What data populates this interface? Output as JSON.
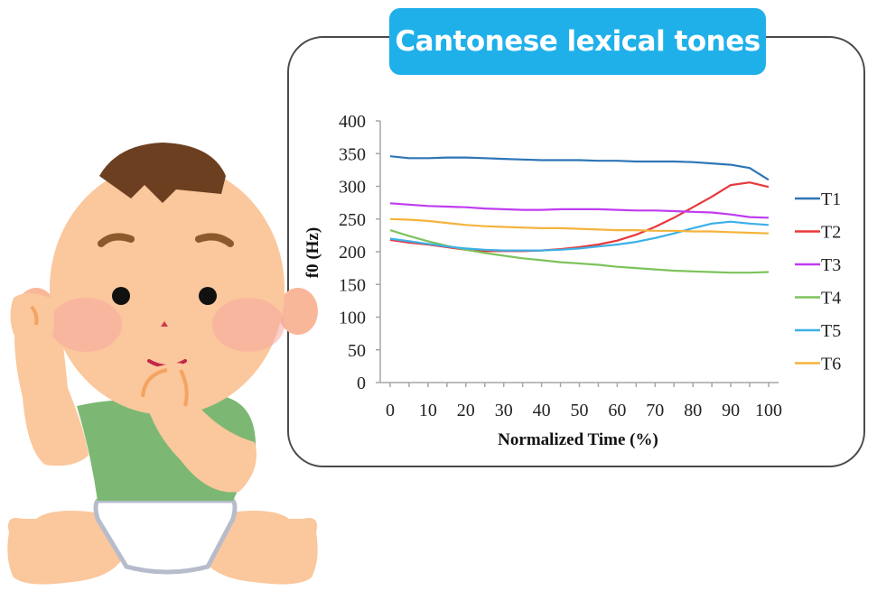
{
  "title": "Cantonese lexical tones",
  "chart_data": {
    "type": "line",
    "title": "Cantonese lexical tones",
    "xlabel": "Normalized Time (%)",
    "ylabel": "f0 (Hz)",
    "x": [
      0,
      5,
      10,
      15,
      20,
      25,
      30,
      35,
      40,
      45,
      50,
      55,
      60,
      65,
      70,
      75,
      80,
      85,
      90,
      95,
      100
    ],
    "xticks": [
      0,
      10,
      20,
      30,
      40,
      50,
      60,
      70,
      80,
      90,
      100
    ],
    "yticks": [
      0,
      50,
      100,
      150,
      200,
      250,
      300,
      350,
      400
    ],
    "xlim": [
      0,
      100
    ],
    "ylim": [
      0,
      400
    ],
    "grid": false,
    "legend_position": "right",
    "series": [
      {
        "name": "T1",
        "color": "#2e75b6",
        "values": [
          346,
          343,
          343,
          344,
          344,
          343,
          342,
          341,
          340,
          340,
          340,
          339,
          339,
          338,
          338,
          338,
          337,
          335,
          333,
          328,
          310
        ]
      },
      {
        "name": "T2",
        "color": "#e8383b",
        "values": [
          218,
          214,
          211,
          207,
          203,
          201,
          201,
          201,
          202,
          204,
          207,
          211,
          217,
          226,
          238,
          252,
          268,
          284,
          302,
          306,
          299
        ]
      },
      {
        "name": "T3",
        "color": "#c03cf0",
        "values": [
          274,
          272,
          270,
          269,
          268,
          266,
          265,
          264,
          264,
          265,
          265,
          265,
          264,
          263,
          263,
          262,
          261,
          260,
          257,
          253,
          252
        ]
      },
      {
        "name": "T4",
        "color": "#7dc35b",
        "values": [
          233,
          224,
          216,
          209,
          203,
          198,
          194,
          190,
          187,
          184,
          182,
          180,
          177,
          175,
          173,
          171,
          170,
          169,
          168,
          168,
          169
        ]
      },
      {
        "name": "T5",
        "color": "#3cb0e8",
        "values": [
          220,
          216,
          212,
          208,
          205,
          203,
          202,
          202,
          202,
          203,
          205,
          208,
          211,
          215,
          221,
          228,
          236,
          243,
          246,
          243,
          241
        ]
      },
      {
        "name": "T6",
        "color": "#f5b33c",
        "values": [
          250,
          249,
          247,
          244,
          241,
          239,
          238,
          237,
          236,
          236,
          235,
          234,
          233,
          233,
          232,
          232,
          231,
          231,
          230,
          229,
          228
        ]
      }
    ]
  },
  "colors": {
    "title_bg": "#1fb0ea",
    "panel_border": "#4a4a4a",
    "axis": "#a6a6a6"
  }
}
